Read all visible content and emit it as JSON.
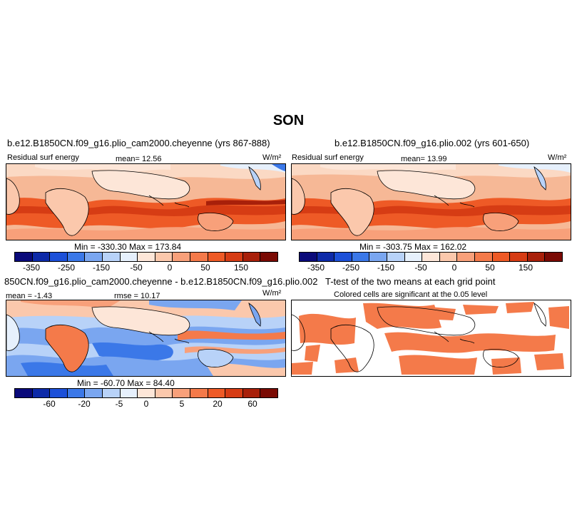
{
  "figure": {
    "title": "SON"
  },
  "panels": {
    "top_left": {
      "case": "b.e12.B1850CN.f09_g16.plio_cam2000.cheyenne (yrs 867-888)",
      "field": "Residual surf energy",
      "mean": "mean=  12.56",
      "units": "W/m²",
      "minmax": "Min = -330.30  Max = 173.84"
    },
    "top_right": {
      "case": "b.e12.B1850CN.f09_g16.plio.002 (yrs 601-650)",
      "field": "Residual surf energy",
      "mean": "mean=  13.99",
      "units": "W/m²",
      "minmax": "Min = -303.75  Max = 162.02"
    },
    "bottom_left": {
      "case": "850CN.f09_g16.plio_cam2000.cheyenne - b.e12.B1850CN.f09_g16.plio.002",
      "mean": "mean =  -1.43",
      "rmse": "rmse =  10.17",
      "units": "W/m²",
      "minmax": "Min = -60.70  Max = 84.40"
    },
    "bottom_right": {
      "case": "T-test of the two means at each grid point",
      "note": "Colored cells are significant at the 0.05 level"
    }
  },
  "colorbars": {
    "colors": [
      "#0a0a7a",
      "#0d2aa8",
      "#1c50d8",
      "#3b78e8",
      "#7aa6f0",
      "#b8d2f8",
      "#e6f0fc",
      "#fde6d8",
      "#fbc8ac",
      "#f8a07a",
      "#f47a4a",
      "#ee5a26",
      "#d63c14",
      "#a8200a",
      "#7a0a04"
    ],
    "top_left_ticks": [
      "-350",
      "-250",
      "-150",
      "-50",
      "0",
      "50",
      "150"
    ],
    "top_right_ticks": [
      "-350",
      "-250",
      "-150",
      "-50",
      "0",
      "50",
      "150"
    ],
    "bottom_left_ticks": [
      "-60",
      "-20",
      "-5",
      "0",
      "5",
      "20",
      "60"
    ]
  }
}
